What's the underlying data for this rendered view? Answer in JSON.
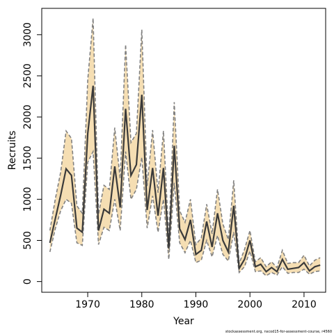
{
  "chart_data": {
    "type": "line",
    "xlabel": "Year",
    "ylabel": "Recruits",
    "xlim": [
      1961.5,
      2014
    ],
    "ylim": [
      -130,
      3320
    ],
    "x_ticks": [
      1970,
      1980,
      1990,
      2000,
      2010
    ],
    "y_ticks": [
      0,
      500,
      1000,
      1500,
      2000,
      2500,
      3000
    ],
    "credit": "stockassessment.org, nscod15-for-assessment-course, r4560",
    "colors": {
      "band": "#f5deb3",
      "line": "#3a3a3a",
      "bounds": "#808080",
      "axis": "#000000"
    },
    "series": [
      {
        "x": [
          1963,
          1964,
          1965,
          1966,
          1967,
          1968,
          1969,
          1970,
          1971,
          1972,
          1973,
          1974,
          1975,
          1976,
          1977,
          1978,
          1979,
          1980,
          1981,
          1982,
          1983,
          1984,
          1985,
          1986,
          1987,
          1988,
          1989,
          1990,
          1991,
          1992,
          1993,
          1994,
          1995,
          1996,
          1997,
          1998,
          1999,
          2000,
          2001,
          2002,
          2003,
          2004,
          2005,
          2006,
          2007,
          2008,
          2009,
          2010,
          2011,
          2012,
          2013
        ],
        "values": [
          470,
          760,
          1050,
          1370,
          1290,
          650,
          600,
          1800,
          2380,
          620,
          880,
          830,
          1400,
          900,
          2100,
          1290,
          1420,
          2270,
          870,
          1380,
          800,
          1380,
          400,
          1650,
          640,
          510,
          750,
          330,
          380,
          730,
          420,
          830,
          500,
          360,
          920,
          160,
          270,
          500,
          180,
          210,
          120,
          170,
          120,
          270,
          150,
          160,
          170,
          230,
          130,
          180,
          200
        ]
      }
    ],
    "lower": [
      360,
      640,
      860,
      1000,
      950,
      470,
      440,
      1450,
      1580,
      450,
      660,
      620,
      1000,
      620,
      1580,
      1000,
      1120,
      1510,
      650,
      1040,
      600,
      1000,
      270,
      1200,
      470,
      350,
      500,
      230,
      260,
      500,
      300,
      560,
      330,
      250,
      600,
      110,
      180,
      370,
      120,
      130,
      70,
      110,
      80,
      180,
      100,
      110,
      110,
      150,
      90,
      120,
      130
    ],
    "upper": [
      620,
      1000,
      1330,
      1830,
      1740,
      920,
      830,
      2450,
      3200,
      820,
      1170,
      1120,
      1870,
      1250,
      2880,
      1690,
      1800,
      3060,
      1160,
      1840,
      1080,
      1830,
      530,
      2180,
      860,
      720,
      1000,
      450,
      530,
      940,
      580,
      1120,
      700,
      510,
      1230,
      220,
      390,
      620,
      240,
      290,
      180,
      240,
      170,
      380,
      220,
      230,
      230,
      320,
      190,
      260,
      290
    ]
  }
}
